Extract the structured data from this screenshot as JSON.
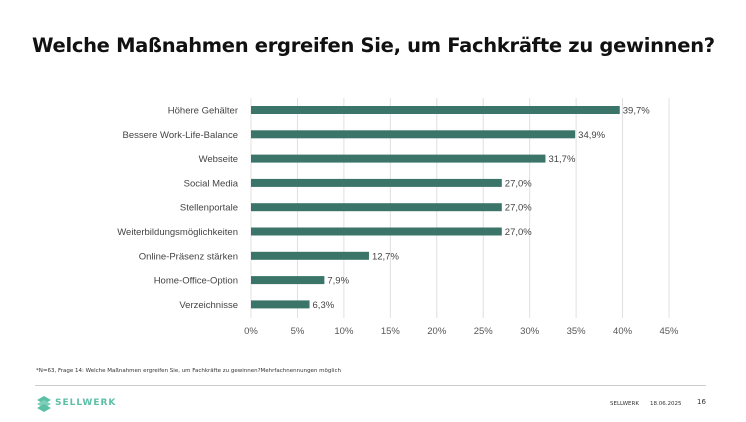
{
  "title": "Welche Maßnahmen ergreifen Sie, um Fachkräfte zu gewinnen?",
  "chart_data": {
    "type": "bar",
    "orientation": "horizontal",
    "categories": [
      "Höhere Gehälter",
      "Bessere Work-Life-Balance",
      "Webseite",
      "Social Media",
      "Stellenportale",
      "Weiterbildungsmöglichkeiten",
      "Online-Präsenz stärken",
      "Home-Office-Option",
      "Verzeichnisse"
    ],
    "values": [
      39.7,
      34.9,
      31.7,
      27.0,
      27.0,
      27.0,
      12.7,
      7.9,
      6.3
    ],
    "data_labels": [
      "39,7%",
      "34,9%",
      "31,7%",
      "27,0%",
      "27,0%",
      "27,0%",
      "12,7%",
      "7,9%",
      "6,3%"
    ],
    "xlim": [
      0,
      45
    ],
    "xticks": [
      "0%",
      "5%",
      "10%",
      "15%",
      "20%",
      "25%",
      "30%",
      "35%",
      "40%",
      "45%"
    ],
    "grid": "vertical",
    "bar_color": "#3b7468"
  },
  "footnote": "*N=63, Frage 14: Welche Maßnahmen ergreifen Sie, um Fachkräfte zu gewinnen?Mehrfachnennungen möglich",
  "footer": {
    "logo_text": "SELLWERK",
    "company": "SELLWERK",
    "date": "18.06.2025",
    "page": "16",
    "logo_color": "#5cbfa6"
  }
}
